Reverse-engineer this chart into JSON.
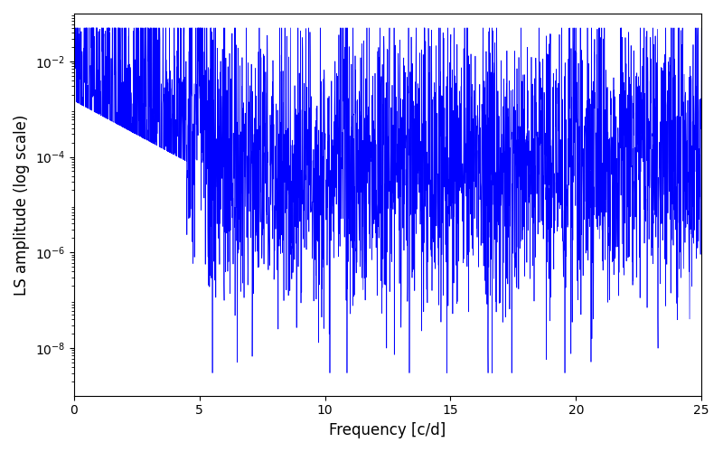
{
  "title": "",
  "xlabel": "Frequency [c/d]",
  "ylabel": "LS amplitude (log scale)",
  "xlim": [
    0,
    25
  ],
  "ylim_log": [
    -9,
    -1
  ],
  "line_color": "#0000ff",
  "line_width": 0.5,
  "background_color": "#ffffff",
  "freq_min": 0.0,
  "freq_max": 25.0,
  "n_points": 3000,
  "seed": 12345,
  "yscale": "log",
  "yticks": [
    1e-08,
    1e-06,
    0.0001,
    0.01
  ],
  "figsize": [
    8.0,
    5.0
  ],
  "dpi": 100
}
